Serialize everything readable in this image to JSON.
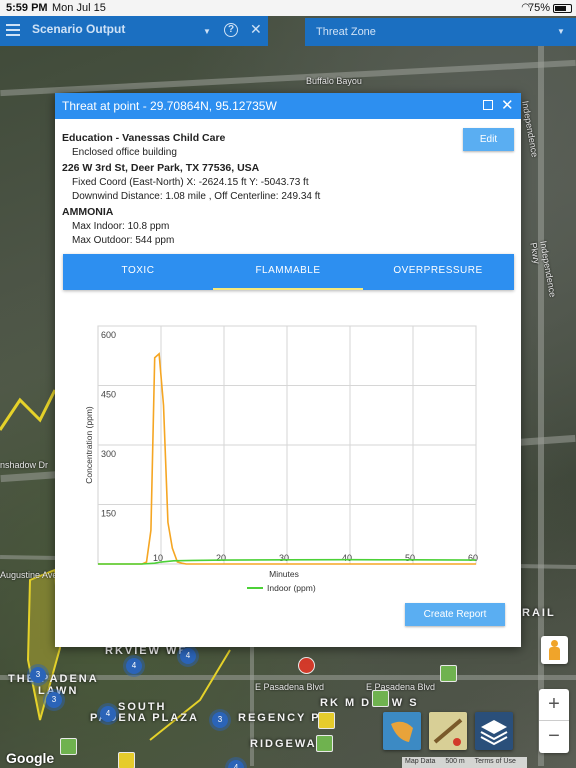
{
  "status_bar": {
    "time": "5:59 PM",
    "date": "Mon Jul 15",
    "battery": "75%",
    "battery_level": 0.75
  },
  "top_bar": {
    "title": "Scenario Output",
    "threat_zone_label": "Threat Zone"
  },
  "map": {
    "labels": [
      "Buffalo Bayou",
      "Independence Pkwy",
      "Independence Pkwy",
      "nshadow Dr",
      "Augustine Ave",
      "E Pasadena Blvd",
      "E Pasadena Blvd"
    ],
    "big_labels": [
      "RKVIEW WE",
      "THE  PADENA",
      "LAWN",
      "SOUTH",
      "PADENA PLAZA",
      "REGENCY P",
      "RIDGEWA",
      "RK  M D O W S",
      "RAIL"
    ],
    "clusters": [
      "4",
      "4",
      "3",
      "3",
      "3",
      "4",
      "4"
    ],
    "google": "Google",
    "attribution": {
      "map_data": "Map Data",
      "scale": "500 m",
      "terms": "Terms of Use"
    }
  },
  "dialog": {
    "title": "Threat at point - 29.70864N, 95.12735W",
    "location_name": "Education - Vanessas Child Care",
    "building_type": "Enclosed office building",
    "address": "226 W 3rd St, Deer Park, TX 77536, USA",
    "fixed_coord": "Fixed Coord (East-North) X: -2624.15 ft Y: -5043.73 ft",
    "downwind": "Downwind Distance: 1.08 mile , Off Centerline: 249.34 ft",
    "chemical": "AMMONIA",
    "max_indoor": "Max Indoor: 10.8 ppm",
    "max_outdoor": "Max Outdoor: 544 ppm",
    "edit_label": "Edit",
    "tabs": [
      {
        "label": "TOXIC",
        "active": false
      },
      {
        "label": "FLAMMABLE",
        "active": true
      },
      {
        "label": "OVERPRESSURE",
        "active": false
      }
    ],
    "create_report_label": "Create Report"
  },
  "chart_data": {
    "type": "line",
    "xlabel": "Minutes",
    "ylabel": "Concentration (ppm)",
    "xlim": [
      0,
      60
    ],
    "ylim": [
      0,
      600
    ],
    "x_ticks": [
      10,
      20,
      30,
      40,
      50,
      60
    ],
    "y_ticks": [
      150,
      300,
      450,
      600
    ],
    "grid": true,
    "legend": "bottom-center",
    "series": [
      {
        "name": "",
        "color": "#f5a623",
        "x": [
          0,
          7,
          7.7,
          8.4,
          9,
          9.7,
          10.4,
          11.1,
          11.8,
          12.6,
          13.3,
          14,
          60
        ],
        "y": [
          0,
          0,
          5,
          85,
          520,
          530,
          400,
          105,
          40,
          5,
          2,
          0,
          0
        ]
      },
      {
        "name": "Indoor (ppm)",
        "color": "#4cd137",
        "x": [
          0,
          7,
          9,
          10,
          12,
          15,
          20,
          30,
          40,
          50,
          60
        ],
        "y": [
          0,
          0,
          2,
          5,
          8,
          9,
          10,
          10.5,
          10.8,
          10.5,
          10
        ]
      }
    ]
  }
}
